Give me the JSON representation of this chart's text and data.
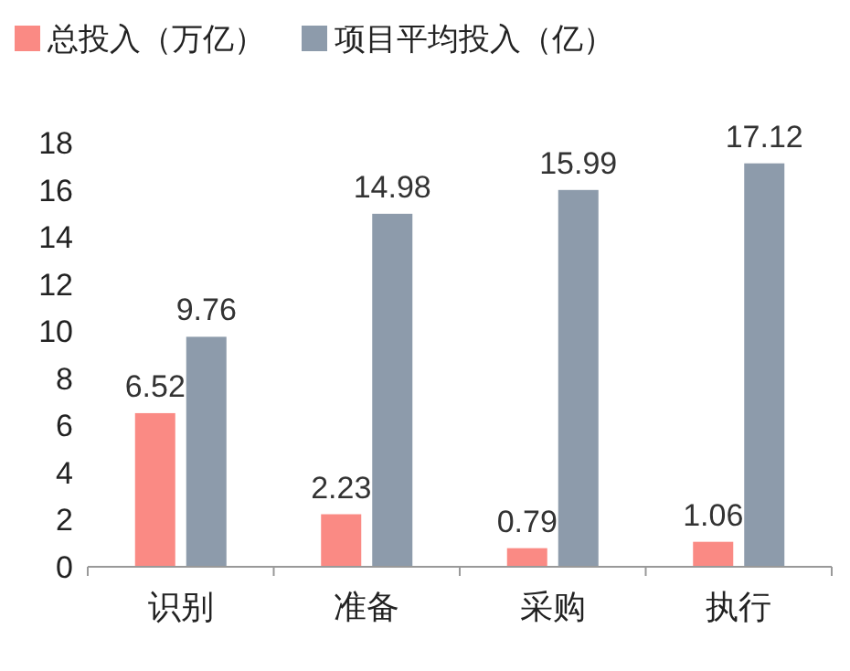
{
  "chart_data": {
    "type": "bar",
    "categories": [
      "识别",
      "准备",
      "采购",
      "执行"
    ],
    "series": [
      {
        "name": "总投入（万亿）",
        "color": "#fa8a84",
        "values": [
          6.52,
          2.23,
          0.79,
          1.06
        ]
      },
      {
        "name": "项目平均投入（亿）",
        "color": "#8d9bab",
        "values": [
          9.76,
          14.98,
          15.99,
          17.12
        ]
      }
    ],
    "ylim": [
      0,
      18
    ],
    "yticks": [
      0,
      2,
      4,
      6,
      8,
      10,
      12,
      14,
      16,
      18
    ],
    "data_labels": true,
    "legend": "top",
    "grid": false
  }
}
